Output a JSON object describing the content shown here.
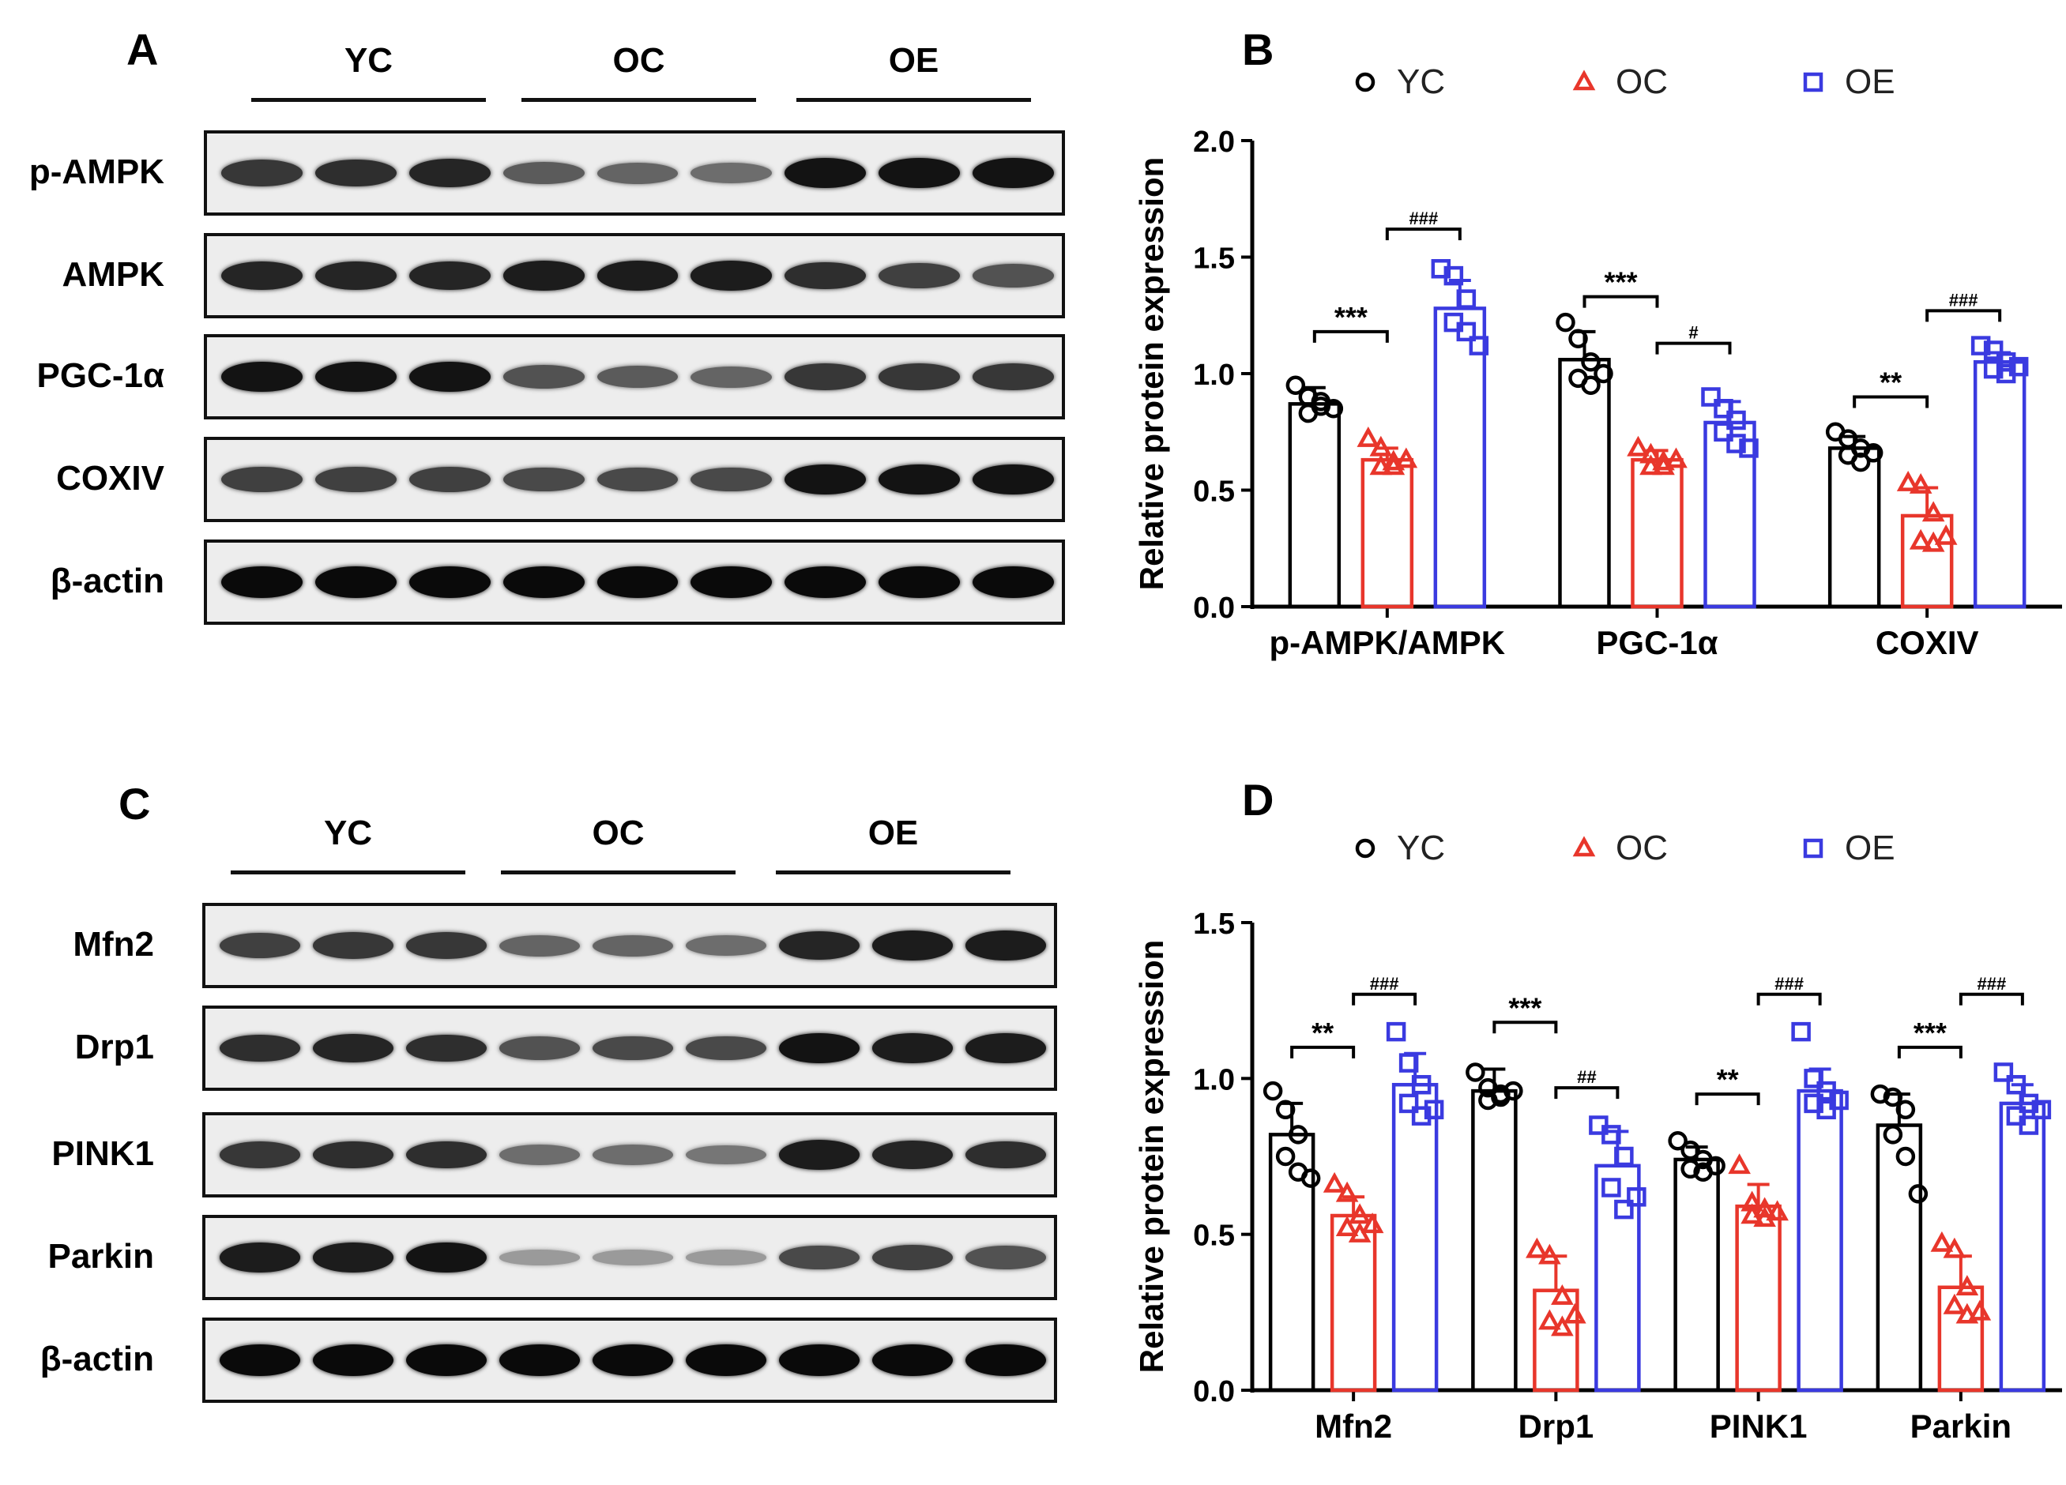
{
  "panels": {
    "A": {
      "letter": "A",
      "groups": [
        "YC",
        "OC",
        "OE"
      ],
      "proteins": [
        {
          "name": "p-AMPK",
          "intensity": [
            0.75,
            0.8,
            0.85,
            0.55,
            0.5,
            0.45,
            0.95,
            0.95,
            0.95
          ]
        },
        {
          "name": "AMPK",
          "intensity": [
            0.85,
            0.85,
            0.85,
            0.9,
            0.9,
            0.9,
            0.8,
            0.7,
            0.6
          ]
        },
        {
          "name": "PGC-1α",
          "intensity": [
            0.95,
            0.95,
            0.95,
            0.6,
            0.55,
            0.5,
            0.75,
            0.75,
            0.75
          ]
        },
        {
          "name": "COXIV",
          "intensity": [
            0.7,
            0.7,
            0.7,
            0.65,
            0.65,
            0.65,
            0.95,
            0.95,
            0.95
          ]
        },
        {
          "name": "β-actin",
          "intensity": [
            1,
            1,
            1,
            1,
            1,
            1,
            1,
            1,
            1
          ]
        }
      ]
    },
    "C": {
      "letter": "C",
      "groups": [
        "YC",
        "OC",
        "OE"
      ],
      "proteins": [
        {
          "name": "Mfn2",
          "intensity": [
            0.7,
            0.75,
            0.75,
            0.5,
            0.5,
            0.45,
            0.85,
            0.9,
            0.9
          ]
        },
        {
          "name": "Drp1",
          "intensity": [
            0.8,
            0.85,
            0.8,
            0.6,
            0.65,
            0.65,
            0.95,
            0.9,
            0.9
          ]
        },
        {
          "name": "PINK1",
          "intensity": [
            0.75,
            0.8,
            0.8,
            0.45,
            0.45,
            0.4,
            0.9,
            0.85,
            0.8
          ]
        },
        {
          "name": "Parkin",
          "intensity": [
            0.9,
            0.9,
            0.95,
            0.2,
            0.2,
            0.2,
            0.65,
            0.7,
            0.6
          ]
        },
        {
          "name": "β-actin",
          "intensity": [
            1,
            1,
            1,
            1,
            1,
            1,
            1,
            1,
            1
          ]
        }
      ]
    }
  },
  "chart_data": [
    {
      "panel": "B",
      "type": "bar",
      "title": "",
      "legend": [
        "YC",
        "OC",
        "OE"
      ],
      "ylabel": "Relative protein expression",
      "ylim": [
        0,
        2
      ],
      "yticks": [
        "0.0",
        "0.5",
        "1.0",
        "1.5",
        "2.0"
      ],
      "categories": [
        "p-AMPK/AMPK",
        "PGC-1α",
        "COXIV"
      ],
      "series": [
        {
          "name": "YC",
          "color": "#000000",
          "marker": "circle",
          "values": [
            0.87,
            1.06,
            0.68
          ],
          "sd": [
            0.07,
            0.12,
            0.05
          ],
          "points": [
            [
              0.95,
              0.9,
              0.86,
              0.83,
              0.88,
              0.85
            ],
            [
              1.22,
              1.15,
              1.05,
              0.98,
              0.95,
              1.0
            ],
            [
              0.75,
              0.72,
              0.68,
              0.65,
              0.62,
              0.66
            ]
          ]
        },
        {
          "name": "OC",
          "color": "#e8362b",
          "marker": "triangle",
          "values": [
            0.63,
            0.63,
            0.39
          ],
          "sd": [
            0.05,
            0.04,
            0.12
          ],
          "points": [
            [
              0.72,
              0.68,
              0.62,
              0.6,
              0.6,
              0.63
            ],
            [
              0.68,
              0.65,
              0.62,
              0.6,
              0.6,
              0.63
            ],
            [
              0.53,
              0.52,
              0.4,
              0.28,
              0.27,
              0.3
            ]
          ]
        },
        {
          "name": "OE",
          "color": "#3a3ae0",
          "marker": "square",
          "values": [
            1.28,
            0.79,
            1.05
          ],
          "sd": [
            0.12,
            0.09,
            0.04
          ],
          "points": [
            [
              1.45,
              1.42,
              1.32,
              1.22,
              1.18,
              1.12
            ],
            [
              0.9,
              0.85,
              0.8,
              0.75,
              0.7,
              0.68
            ],
            [
              1.12,
              1.1,
              1.05,
              1.02,
              1.0,
              1.03
            ]
          ]
        }
      ],
      "annotations": [
        {
          "cat": 0,
          "from": 0,
          "to": 1,
          "y": 1.18,
          "label": "***"
        },
        {
          "cat": 0,
          "from": 1,
          "to": 2,
          "y": 1.62,
          "label": "###"
        },
        {
          "cat": 1,
          "from": 0,
          "to": 1,
          "y": 1.33,
          "label": "***"
        },
        {
          "cat": 1,
          "from": 1,
          "to": 2,
          "y": 1.13,
          "label": "#"
        },
        {
          "cat": 2,
          "from": 0,
          "to": 1,
          "y": 0.9,
          "label": "**"
        },
        {
          "cat": 2,
          "from": 1,
          "to": 2,
          "y": 1.27,
          "label": "###"
        }
      ]
    },
    {
      "panel": "D",
      "type": "bar",
      "title": "",
      "legend": [
        "YC",
        "OC",
        "OE"
      ],
      "ylabel": "Relative protein expression",
      "ylim": [
        0,
        1.5
      ],
      "yticks": [
        "0.0",
        "0.5",
        "1.0",
        "1.5"
      ],
      "categories": [
        "Mfn2",
        "Drp1",
        "PINK1",
        "Parkin"
      ],
      "series": [
        {
          "name": "YC",
          "color": "#000000",
          "marker": "circle",
          "values": [
            0.82,
            0.96,
            0.74,
            0.85
          ],
          "sd": [
            0.1,
            0.07,
            0.04,
            0.1
          ],
          "points": [
            [
              0.96,
              0.9,
              0.82,
              0.75,
              0.7,
              0.68
            ],
            [
              1.02,
              0.97,
              0.95,
              0.93,
              0.94,
              0.96
            ],
            [
              0.8,
              0.77,
              0.74,
              0.71,
              0.7,
              0.72
            ],
            [
              0.95,
              0.94,
              0.9,
              0.82,
              0.75,
              0.63
            ]
          ]
        },
        {
          "name": "OC",
          "color": "#e8362b",
          "marker": "triangle",
          "values": [
            0.56,
            0.32,
            0.59,
            0.33
          ],
          "sd": [
            0.06,
            0.11,
            0.07,
            0.1
          ],
          "points": [
            [
              0.66,
              0.63,
              0.56,
              0.52,
              0.5,
              0.53
            ],
            [
              0.45,
              0.43,
              0.3,
              0.22,
              0.2,
              0.24
            ],
            [
              0.72,
              0.6,
              0.58,
              0.56,
              0.55,
              0.57
            ],
            [
              0.47,
              0.45,
              0.33,
              0.27,
              0.24,
              0.25
            ]
          ]
        },
        {
          "name": "OE",
          "color": "#3a3ae0",
          "marker": "square",
          "values": [
            0.98,
            0.72,
            0.96,
            0.92
          ],
          "sd": [
            0.1,
            0.11,
            0.07,
            0.06
          ],
          "points": [
            [
              1.15,
              1.05,
              0.98,
              0.92,
              0.88,
              0.9
            ],
            [
              0.85,
              0.82,
              0.75,
              0.65,
              0.58,
              0.62
            ],
            [
              1.15,
              1.0,
              0.96,
              0.92,
              0.9,
              0.93
            ],
            [
              1.02,
              0.98,
              0.92,
              0.88,
              0.85,
              0.9
            ]
          ]
        }
      ],
      "annotations": [
        {
          "cat": 0,
          "from": 0,
          "to": 1,
          "y": 1.1,
          "label": "**"
        },
        {
          "cat": 0,
          "from": 1,
          "to": 2,
          "y": 1.27,
          "label": "###"
        },
        {
          "cat": 1,
          "from": 0,
          "to": 1,
          "y": 1.18,
          "label": "***"
        },
        {
          "cat": 1,
          "from": 1,
          "to": 2,
          "y": 0.97,
          "label": "##"
        },
        {
          "cat": 2,
          "from": 0,
          "to": 1,
          "y": 0.95,
          "label": "**"
        },
        {
          "cat": 2,
          "from": 1,
          "to": 2,
          "y": 1.27,
          "label": "###"
        },
        {
          "cat": 3,
          "from": 0,
          "to": 1,
          "y": 1.1,
          "label": "***"
        },
        {
          "cat": 3,
          "from": 1,
          "to": 2,
          "y": 1.27,
          "label": "###"
        }
      ]
    }
  ]
}
